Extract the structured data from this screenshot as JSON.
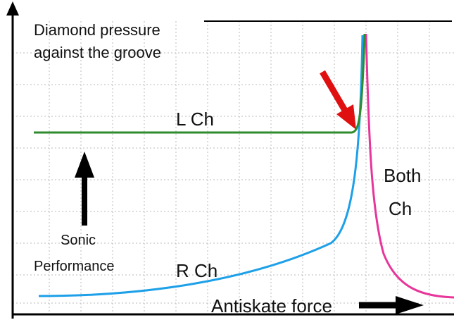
{
  "labels": {
    "y_axis": [
      "Diamond pressure",
      "against the groove"
    ],
    "left_channel": "L Ch",
    "both_channels": [
      "Both",
      "Ch"
    ],
    "sonic": [
      "Sonic",
      "Performance"
    ],
    "right_channel": "R Ch",
    "x_axis": "Antiskate force"
  }
}
